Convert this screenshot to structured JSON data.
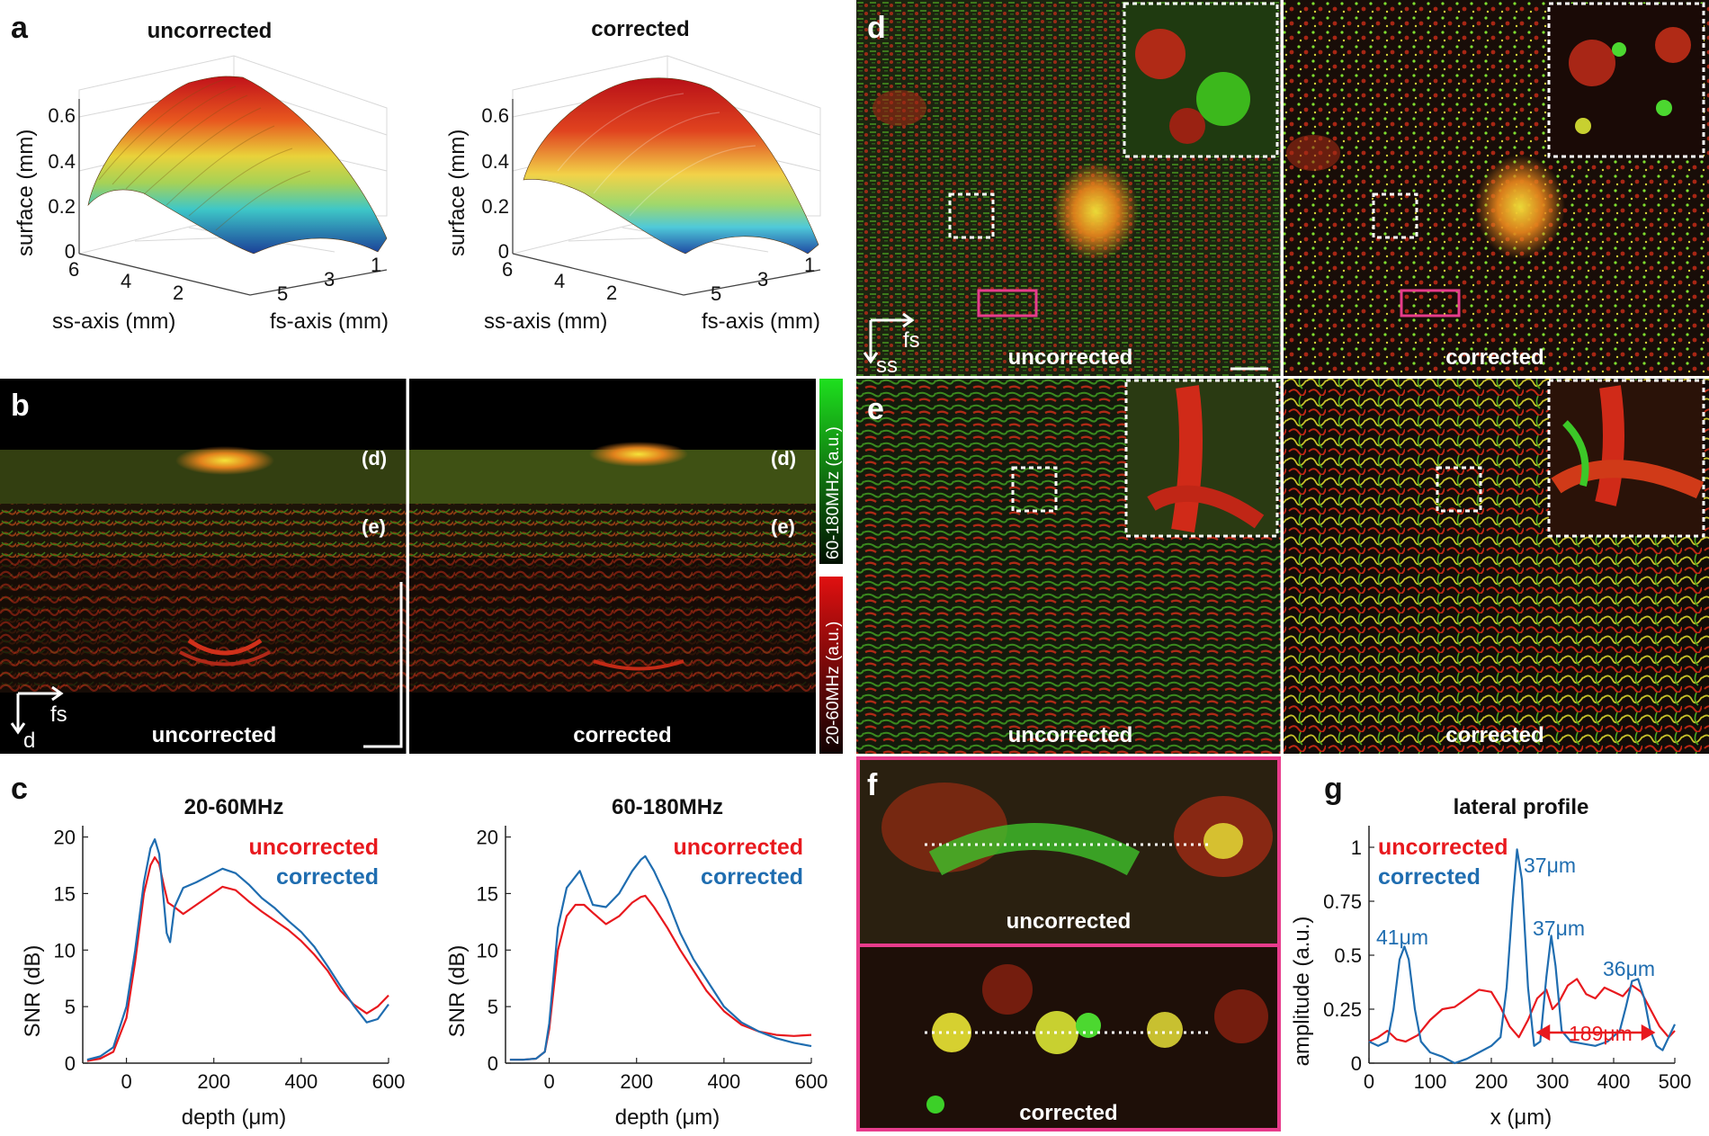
{
  "panels": {
    "a": {
      "label": "a",
      "plots": [
        {
          "title": "uncorrected",
          "zlabel": "surface (mm)",
          "xlabel": "ss-axis (mm)",
          "ylabel": "fs-axis (mm)",
          "zticks": [
            "0",
            "0.2",
            "0.4",
            "0.6"
          ],
          "ssticks": [
            "6",
            "4",
            "2"
          ],
          "fsticks": [
            "5",
            "3",
            "1"
          ]
        },
        {
          "title": "corrected",
          "zlabel": "surface (mm)",
          "xlabel": "ss-axis (mm)",
          "ylabel": "fs-axis (mm)",
          "zticks": [
            "0",
            "0.2",
            "0.4",
            "0.6"
          ],
          "ssticks": [
            "6",
            "4",
            "2"
          ],
          "fsticks": [
            "5",
            "3",
            "1"
          ]
        }
      ]
    },
    "b": {
      "label": "b",
      "left_label": "uncorrected",
      "right_label": "corrected",
      "depth_d": "(d)",
      "depth_e": "(e)",
      "axis_fs": "fs",
      "axis_d": "d",
      "colorbar_green": "60-180MHz (a.u.)",
      "colorbar_red": "20-60MHz (a.u.)"
    },
    "c": {
      "label": "c",
      "ylabel": "SNR (dB)",
      "xlabel": "depth (μm)"
    },
    "d": {
      "label": "d",
      "left_label": "uncorrected",
      "right_label": "corrected",
      "axis_fs": "fs",
      "axis_ss": "ss"
    },
    "e": {
      "label": "e",
      "left_label": "uncorrected",
      "right_label": "corrected"
    },
    "f": {
      "label": "f",
      "top_label": "uncorrected",
      "bottom_label": "corrected"
    },
    "g": {
      "label": "g",
      "annotations": {
        "a41": "41μm",
        "a37a": "37μm",
        "a37b": "37μm",
        "a36": "36μm",
        "a189": "189μm"
      }
    }
  },
  "chart_data": [
    {
      "id": "c-left",
      "type": "line",
      "title": "20-60MHz",
      "xlabel": "depth (μm)",
      "ylabel": "SNR (dB)",
      "xlim": [
        -100,
        600
      ],
      "ylim": [
        0,
        21
      ],
      "xticks": [
        0,
        200,
        400,
        600
      ],
      "yticks": [
        0,
        5,
        10,
        15,
        20
      ],
      "legend": "top-right",
      "series": [
        {
          "name": "uncorrected",
          "color": "#e8191e",
          "x": [
            -90,
            -60,
            -30,
            0,
            20,
            40,
            55,
            65,
            75,
            85,
            95,
            110,
            130,
            160,
            190,
            220,
            250,
            280,
            310,
            340,
            370,
            400,
            430,
            460,
            490,
            520,
            550,
            575,
            600
          ],
          "y": [
            0.2,
            0.4,
            1,
            4,
            9,
            15,
            17.5,
            18.2,
            17.6,
            15.8,
            14.2,
            13.8,
            13.2,
            14,
            14.8,
            15.6,
            15.3,
            14.3,
            13.4,
            12.6,
            11.8,
            10.8,
            9.6,
            8.2,
            6.4,
            5.2,
            4.4,
            5,
            6
          ]
        },
        {
          "name": "corrected",
          "color": "#1f6db0",
          "x": [
            -90,
            -60,
            -30,
            0,
            20,
            40,
            55,
            65,
            75,
            85,
            92,
            100,
            110,
            130,
            160,
            190,
            220,
            250,
            280,
            310,
            340,
            370,
            400,
            430,
            460,
            490,
            520,
            550,
            575,
            600
          ],
          "y": [
            0.3,
            0.6,
            1.4,
            5,
            10,
            16,
            19,
            19.8,
            18.5,
            14.5,
            11.5,
            10.7,
            13.8,
            15.5,
            16,
            16.6,
            17.2,
            16.8,
            15.8,
            14.6,
            13.7,
            12.6,
            11.6,
            10.3,
            8.6,
            6.8,
            5.1,
            3.6,
            3.9,
            5.2
          ]
        }
      ]
    },
    {
      "id": "c-right",
      "type": "line",
      "title": "60-180MHz",
      "xlabel": "depth (μm)",
      "ylabel": "SNR (dB)",
      "xlim": [
        -100,
        600
      ],
      "ylim": [
        0,
        21
      ],
      "xticks": [
        0,
        200,
        400,
        600
      ],
      "yticks": [
        0,
        5,
        10,
        15,
        20
      ],
      "legend": "top-right",
      "series": [
        {
          "name": "uncorrected",
          "color": "#e8191e",
          "x": [
            -90,
            -60,
            -30,
            -10,
            0,
            20,
            40,
            60,
            80,
            100,
            130,
            160,
            190,
            210,
            220,
            240,
            270,
            300,
            330,
            360,
            400,
            440,
            480,
            520,
            560,
            600
          ],
          "y": [
            0.3,
            0.3,
            0.4,
            1,
            3,
            10,
            13,
            14,
            14,
            13.3,
            12.3,
            13,
            14.2,
            14.7,
            14.8,
            13.8,
            12,
            10,
            8.2,
            6.4,
            4.6,
            3.4,
            2.8,
            2.5,
            2.4,
            2.5
          ]
        },
        {
          "name": "corrected",
          "color": "#1f6db0",
          "x": [
            -90,
            -60,
            -30,
            -10,
            0,
            20,
            40,
            60,
            70,
            80,
            100,
            130,
            160,
            190,
            210,
            220,
            240,
            270,
            300,
            330,
            360,
            400,
            440,
            480,
            520,
            560,
            600
          ],
          "y": [
            0.3,
            0.3,
            0.4,
            1,
            3.5,
            12,
            15.5,
            16.5,
            17,
            16,
            14,
            13.8,
            15,
            17,
            18,
            18.3,
            17,
            14.5,
            11.5,
            9.2,
            7.4,
            5,
            3.6,
            2.8,
            2.2,
            1.8,
            1.5
          ]
        }
      ]
    },
    {
      "id": "g",
      "type": "line",
      "title": "lateral profile",
      "xlabel": "x  (μm)",
      "ylabel": "amplitude  (a.u.)",
      "xlim": [
        0,
        500
      ],
      "ylim": [
        0,
        1.1
      ],
      "xticks": [
        0,
        100,
        200,
        300,
        400,
        500
      ],
      "yticks": [
        0,
        0.25,
        0.5,
        0.75,
        1
      ],
      "legend": "top-left",
      "series": [
        {
          "name": "uncorrected",
          "color": "#e8191e",
          "x": [
            0,
            15,
            30,
            45,
            60,
            80,
            100,
            120,
            140,
            160,
            180,
            200,
            215,
            230,
            245,
            260,
            275,
            290,
            300,
            310,
            325,
            340,
            355,
            370,
            385,
            400,
            415,
            430,
            445,
            460,
            475,
            490,
            500
          ],
          "y": [
            0.1,
            0.12,
            0.15,
            0.11,
            0.1,
            0.13,
            0.2,
            0.25,
            0.26,
            0.3,
            0.34,
            0.33,
            0.26,
            0.17,
            0.12,
            0.2,
            0.3,
            0.34,
            0.25,
            0.28,
            0.36,
            0.39,
            0.32,
            0.3,
            0.35,
            0.33,
            0.31,
            0.36,
            0.33,
            0.25,
            0.17,
            0.12,
            0.15
          ]
        },
        {
          "name": "corrected",
          "color": "#1f6db0",
          "x": [
            0,
            15,
            30,
            40,
            50,
            58,
            65,
            75,
            85,
            100,
            120,
            140,
            160,
            180,
            200,
            215,
            225,
            235,
            242,
            250,
            260,
            270,
            280,
            290,
            298,
            305,
            315,
            330,
            350,
            370,
            390,
            410,
            420,
            430,
            440,
            450,
            460,
            470,
            480,
            490,
            500
          ],
          "y": [
            0.1,
            0.08,
            0.1,
            0.25,
            0.48,
            0.54,
            0.48,
            0.25,
            0.1,
            0.05,
            0.03,
            0.0,
            0.02,
            0.05,
            0.08,
            0.12,
            0.35,
            0.75,
            0.99,
            0.85,
            0.35,
            0.08,
            0.1,
            0.4,
            0.59,
            0.45,
            0.15,
            0.1,
            0.09,
            0.08,
            0.1,
            0.15,
            0.26,
            0.38,
            0.39,
            0.3,
            0.15,
            0.08,
            0.06,
            0.12,
            0.18
          ]
        }
      ]
    }
  ]
}
